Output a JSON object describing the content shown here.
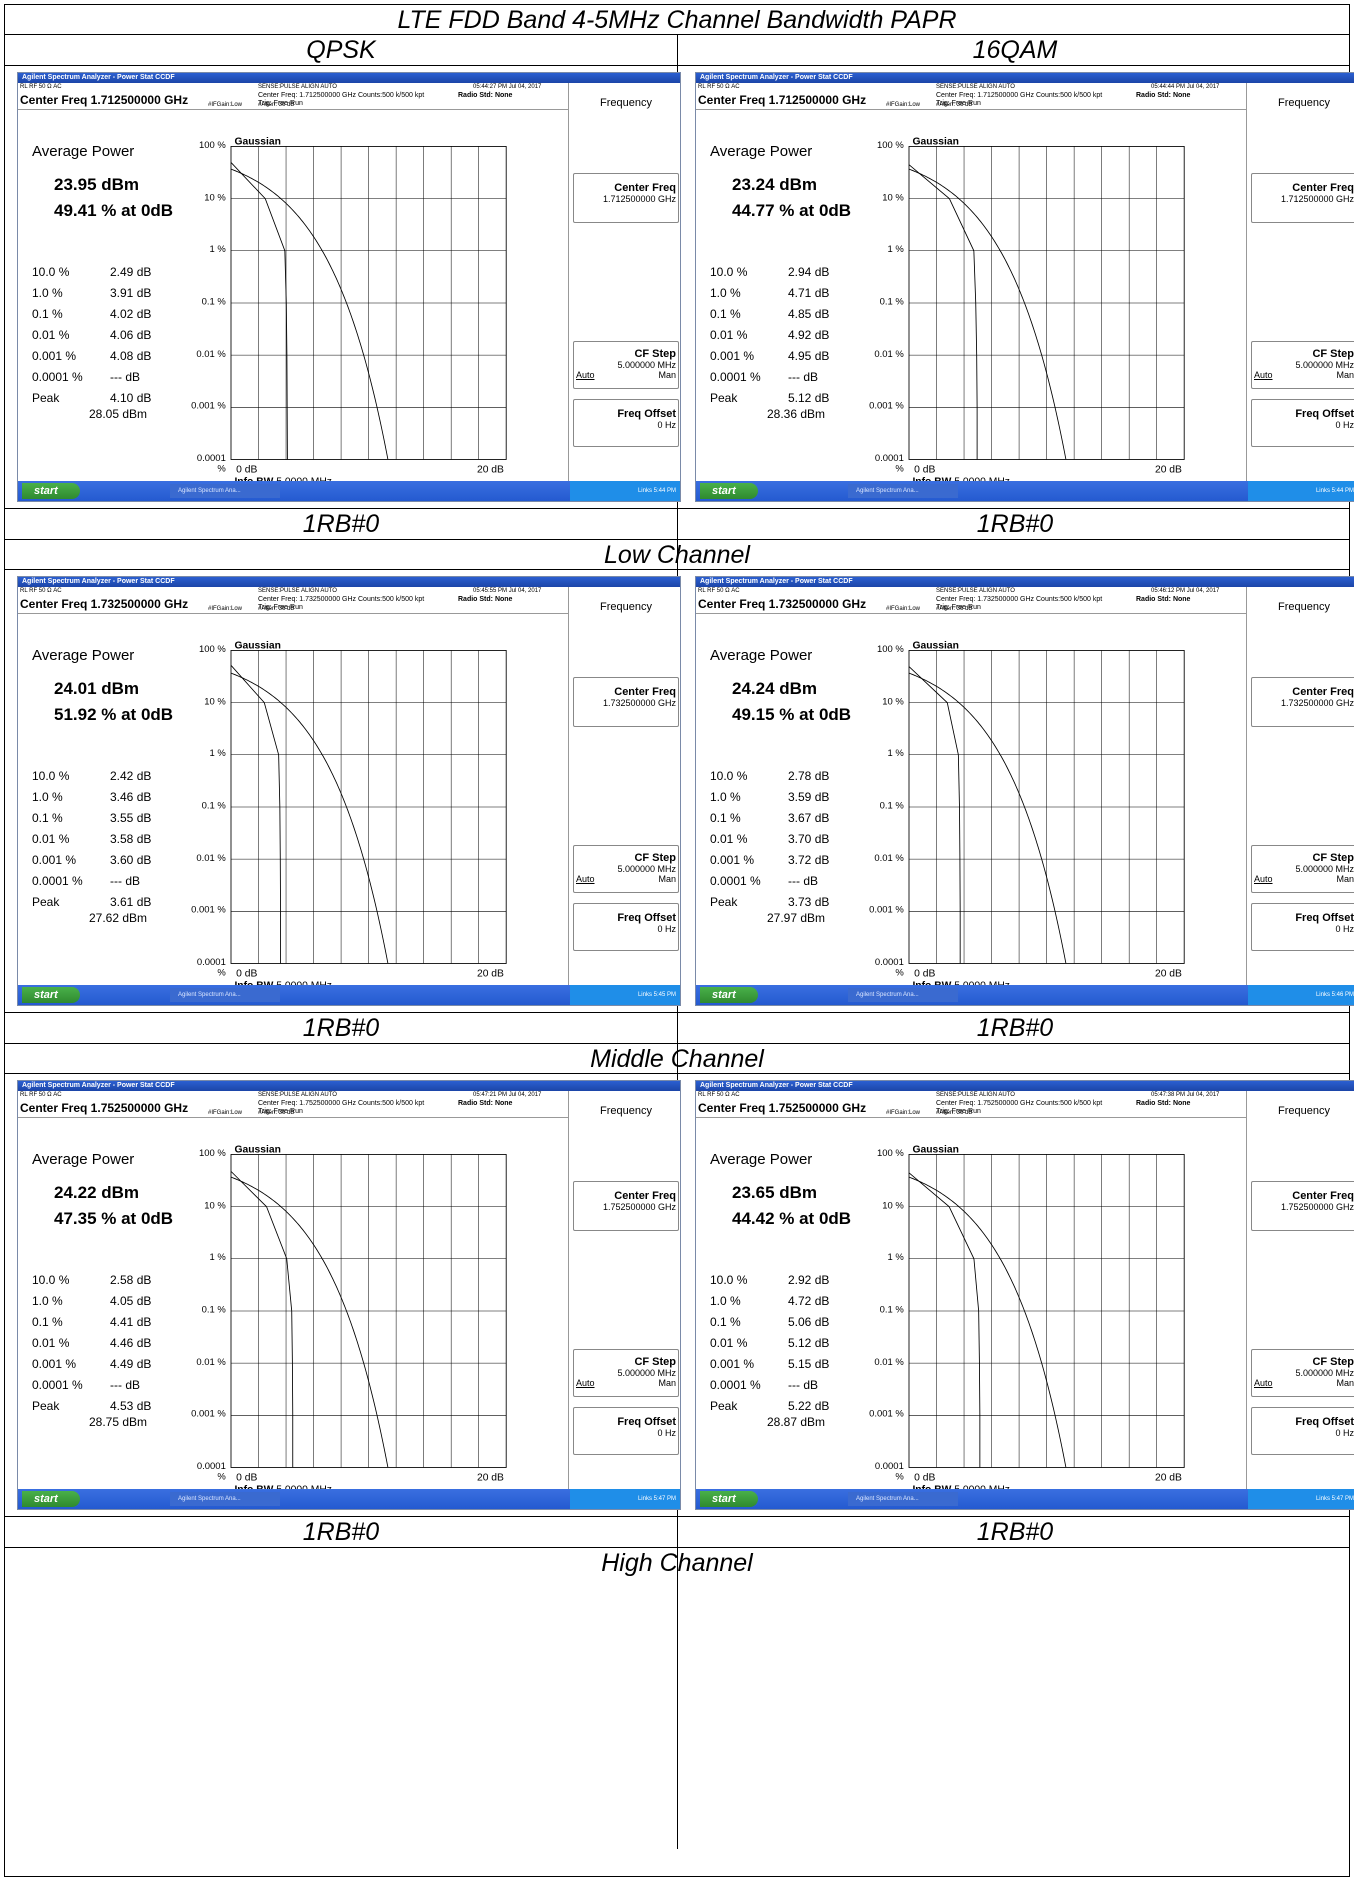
{
  "table_title": "LTE FDD Band 4-5MHz Channel Bandwidth PAPR",
  "col_headers": [
    "QPSK",
    "16QAM"
  ],
  "common": {
    "window_title": "Agilent Spectrum Analyzer - Power Stat CCDF",
    "rl_row": "RL      RF     50 Ω  AC",
    "sense": "SENSE:PULSE          ALIGN AUTO",
    "radio_std": "Radio Std: None",
    "trig": "Trig: Free Run",
    "counts": "Counts:500 k/500 kpt",
    "gain": "#IFGain:Low",
    "atten": "#Atten: 36 dB",
    "average_power_label": "Average Power",
    "graph_title": "Gaussian",
    "y_ticks": [
      "100 %",
      "10 %",
      "1 %",
      "0.1 %",
      "0.01 %",
      "0.001 %",
      "0.0001 %"
    ],
    "x_min": "0 dB",
    "x_max": "20 dB",
    "info_bw_label": "Info BW",
    "info_bw_value": "5.0000 MHz",
    "stat_labels": [
      "10.0 %",
      "1.0 %",
      "0.1 %",
      "0.01 %",
      "0.001 %",
      "0.0001 %",
      "Peak"
    ],
    "menu_title": "Frequency",
    "center_freq_label": "Center Freq",
    "cf_step_label": "CF Step",
    "cf_step_value": "5.000000 MHz",
    "auto": "Auto",
    "man": "Man",
    "freq_offset_label": "Freq Offset",
    "freq_offset_value": "0 Hz",
    "start": "start",
    "task": "Agilent Spectrum Ana...",
    "tray": "Links"
  },
  "rows": [
    {
      "rb_label": "1RB#0",
      "channel": "Low Channel",
      "cells": [
        {
          "center_freq": "Center Freq 1.712500000 GHz",
          "cf_small": "Center Freq: 1.712500000 GHz",
          "cf_menu": "1.712500000 GHz",
          "time": "05:44:27 PM Jul 04, 2017",
          "clock": "5:44 PM",
          "avg_power": "23.95 dBm",
          "pct0": "49.41 % at 0dB",
          "vals": [
            "2.49 dB",
            "3.91 dB",
            "4.02 dB",
            "4.06 dB",
            "4.08 dB",
            "--- dB",
            "4.10 dB"
          ],
          "peak_dbm": "28.05 dBm",
          "drop_db": 4.1
        },
        {
          "center_freq": "Center Freq 1.712500000 GHz",
          "cf_small": "Center Freq: 1.712500000 GHz",
          "cf_menu": "1.712500000 GHz",
          "time": "05:44:44 PM Jul 04, 2017",
          "clock": "5:44 PM",
          "avg_power": "23.24 dBm",
          "pct0": "44.77 % at 0dB",
          "vals": [
            "2.94 dB",
            "4.71 dB",
            "4.85 dB",
            "4.92 dB",
            "4.95 dB",
            "--- dB",
            "5.12 dB"
          ],
          "peak_dbm": "28.36 dBm",
          "drop_db": 4.95
        }
      ]
    },
    {
      "rb_label": "1RB#0",
      "channel": "Middle Channel",
      "cells": [
        {
          "center_freq": "Center Freq 1.732500000 GHz",
          "cf_small": "Center Freq: 1.732500000 GHz",
          "cf_menu": "1.732500000 GHz",
          "time": "05:45:55 PM Jul 04, 2017",
          "clock": "5:45 PM",
          "avg_power": "24.01 dBm",
          "pct0": "51.92 % at 0dB",
          "vals": [
            "2.42 dB",
            "3.46 dB",
            "3.55 dB",
            "3.58 dB",
            "3.60 dB",
            "--- dB",
            "3.61 dB"
          ],
          "peak_dbm": "27.62 dBm",
          "drop_db": 3.6
        },
        {
          "center_freq": "Center Freq 1.732500000 GHz",
          "cf_small": "Center Freq: 1.732500000 GHz",
          "cf_menu": "1.732500000 GHz",
          "time": "05:46:12 PM Jul 04, 2017",
          "clock": "5:46 PM",
          "avg_power": "24.24 dBm",
          "pct0": "49.15 % at 0dB",
          "vals": [
            "2.78 dB",
            "3.59 dB",
            "3.67 dB",
            "3.70 dB",
            "3.72 dB",
            "--- dB",
            "3.73 dB"
          ],
          "peak_dbm": "27.97 dBm",
          "drop_db": 3.72
        }
      ]
    },
    {
      "rb_label": "1RB#0",
      "channel": "High Channel",
      "cells": [
        {
          "center_freq": "Center Freq 1.752500000 GHz",
          "cf_small": "Center Freq: 1.752500000 GHz",
          "cf_menu": "1.752500000 GHz",
          "time": "05:47:21 PM Jul 04, 2017",
          "clock": "5:47 PM",
          "avg_power": "24.22 dBm",
          "pct0": "47.35 % at 0dB",
          "vals": [
            "2.58 dB",
            "4.05 dB",
            "4.41 dB",
            "4.46 dB",
            "4.49 dB",
            "--- dB",
            "4.53 dB"
          ],
          "peak_dbm": "28.75 dBm",
          "drop_db": 4.49
        },
        {
          "center_freq": "Center Freq 1.752500000 GHz",
          "cf_small": "Center Freq: 1.752500000 GHz",
          "cf_menu": "1.752500000 GHz",
          "time": "05:47:38 PM Jul 04, 2017",
          "clock": "5:47 PM",
          "avg_power": "23.65 dBm",
          "pct0": "44.42 % at 0dB",
          "vals": [
            "2.92 dB",
            "4.72 dB",
            "5.06 dB",
            "5.12 dB",
            "5.15 dB",
            "--- dB",
            "5.22 dB"
          ],
          "peak_dbm": "28.87 dBm",
          "drop_db": 5.15
        }
      ]
    }
  ]
}
